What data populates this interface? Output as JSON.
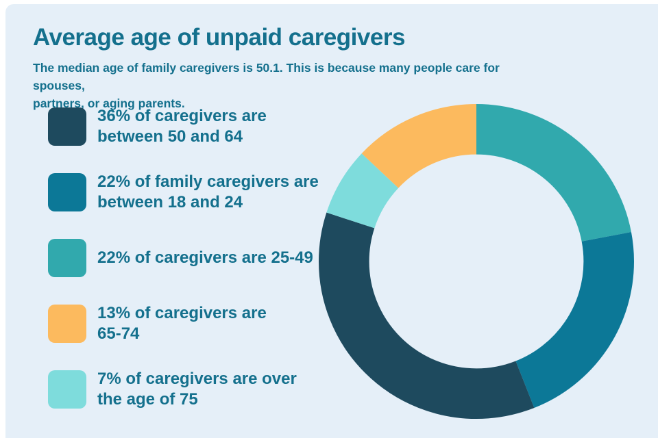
{
  "page": {
    "background_color": "#ffffff",
    "panel_color": "#e5eff8",
    "accent_text_color": "#14708d"
  },
  "header": {
    "title": "Average age of unpaid caregivers",
    "subtitle": "The median age of family caregivers is 50.1. This is because many people care for spouses,\npartners, or aging parents."
  },
  "legend": {
    "items": [
      {
        "swatch_color": "#1e4a5e",
        "label": "36% of caregivers are\nbetween 50 and 64"
      },
      {
        "swatch_color": "#0c7897",
        "label": "22% of family caregivers are\nbetween 18 and 24"
      },
      {
        "swatch_color": "#31a9ad",
        "label": "22% of caregivers are 25-49"
      },
      {
        "swatch_color": "#fcba5e",
        "label": "13% of caregivers are\n65-74"
      },
      {
        "swatch_color": "#7edcdc",
        "label": "7% of caregivers are over\nthe age of 75"
      }
    ]
  },
  "chart_data": {
    "type": "pie",
    "variant": "donut",
    "title": "Average age of unpaid caregivers",
    "subtitle_fact": "The median age of family caregivers is 50.1",
    "legend_position": "left",
    "start_angle_deg": 0,
    "direction": "clockwise",
    "inner_radius_ratio": 0.68,
    "slices": [
      {
        "category": "caregivers age 25-49",
        "value_pct": 22,
        "color": "#31a9ad"
      },
      {
        "category": "caregivers age 18-24",
        "value_pct": 22,
        "color": "#0c7897"
      },
      {
        "category": "caregivers age 50-64",
        "value_pct": 36,
        "color": "#1e4a5e"
      },
      {
        "category": "caregivers over age 75",
        "value_pct": 7,
        "color": "#7edcdc"
      },
      {
        "category": "caregivers age 65-74",
        "value_pct": 13,
        "color": "#fcba5e"
      }
    ]
  }
}
